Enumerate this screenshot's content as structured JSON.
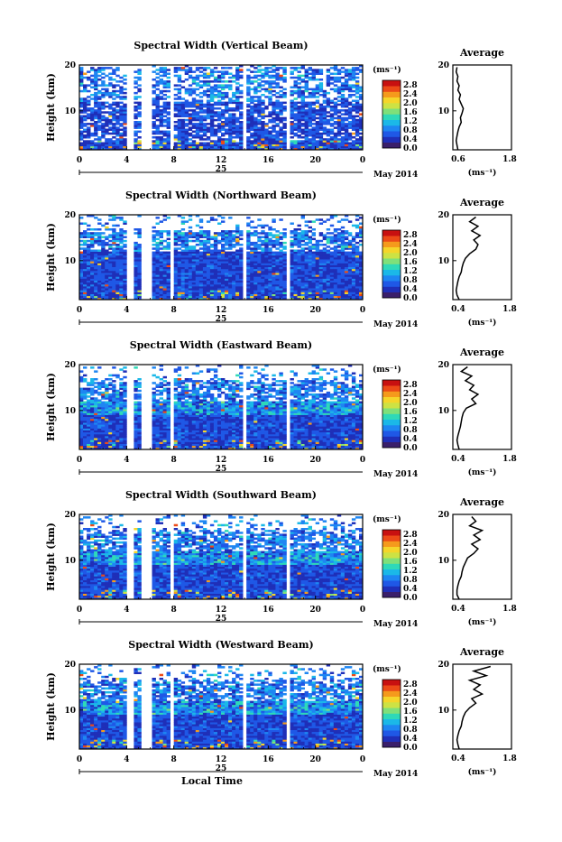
{
  "chart_data": {
    "type": "heatmap",
    "colorbar": {
      "unit": "(ms⁻¹)",
      "ticks": [
        "2.8",
        "2.4",
        "2.0",
        "1.6",
        "1.2",
        "0.8",
        "0.4",
        "0.0"
      ],
      "colors": [
        "#3a1f6b",
        "#1f2fb8",
        "#1f58e6",
        "#1e86f2",
        "#1bb8e8",
        "#2fd9b8",
        "#7fe07a",
        "#cde244",
        "#f5d52a",
        "#f59a1c",
        "#ec4a17",
        "#c81010"
      ]
    },
    "x_ticks": [
      "0",
      "4",
      "8",
      "12",
      "16",
      "20",
      "0"
    ],
    "x_range": [
      0,
      24
    ],
    "date_day": "25",
    "date_label": "May 2014",
    "xlabel": "Local Time",
    "ylabel": "Height (km)",
    "y_ticks": [
      "20",
      "10"
    ],
    "y_range": [
      1.5,
      20
    ],
    "gaps_hours": [
      [
        4.0,
        4.5
      ],
      [
        5.3,
        6.0
      ],
      [
        7.6,
        8.0
      ],
      [
        13.7,
        14.1
      ],
      [
        17.6,
        17.9
      ]
    ],
    "panels": [
      {
        "title": "Spectral Width (Vertical Beam)",
        "avg_title": "Average",
        "avg_xticks": [
          "0.6",
          "1.8"
        ],
        "avg_xrange": [
          0.4,
          1.8
        ],
        "avg_xlabel": "(ms⁻¹)",
        "avg_profile": [
          [
            0.52,
            1.5
          ],
          [
            0.5,
            2.5
          ],
          [
            0.48,
            3.5
          ],
          [
            0.5,
            4.5
          ],
          [
            0.52,
            5.5
          ],
          [
            0.55,
            6.5
          ],
          [
            0.6,
            7.5
          ],
          [
            0.58,
            8.5
          ],
          [
            0.62,
            9.5
          ],
          [
            0.65,
            10.5
          ],
          [
            0.6,
            11.5
          ],
          [
            0.55,
            12.5
          ],
          [
            0.58,
            13.5
          ],
          [
            0.52,
            14.5
          ],
          [
            0.55,
            15.5
          ],
          [
            0.5,
            16.5
          ],
          [
            0.52,
            17.5
          ],
          [
            0.48,
            18.5
          ],
          [
            0.5,
            19.5
          ]
        ]
      },
      {
        "title": "Spectral Width (Northward Beam)",
        "avg_title": "Average",
        "avg_xticks": [
          "0.4",
          "1.8"
        ],
        "avg_xrange": [
          0.4,
          1.8
        ],
        "avg_xlabel": "(ms⁻¹)",
        "avg_profile": [
          [
            0.55,
            1.5
          ],
          [
            0.5,
            2.5
          ],
          [
            0.48,
            3.5
          ],
          [
            0.5,
            4.5
          ],
          [
            0.52,
            5.5
          ],
          [
            0.55,
            6.5
          ],
          [
            0.6,
            7.5
          ],
          [
            0.62,
            8.5
          ],
          [
            0.65,
            9.5
          ],
          [
            0.7,
            10.5
          ],
          [
            0.8,
            11.5
          ],
          [
            0.95,
            12.5
          ],
          [
            1.0,
            13.5
          ],
          [
            0.9,
            14.5
          ],
          [
            1.05,
            15.5
          ],
          [
            0.85,
            16.5
          ],
          [
            1.0,
            17.5
          ],
          [
            0.8,
            18.5
          ],
          [
            0.95,
            19.5
          ]
        ]
      },
      {
        "title": "Spectral Width (Eastward Beam)",
        "avg_title": "Average",
        "avg_xticks": [
          "0.4",
          "1.8"
        ],
        "avg_xrange": [
          0.4,
          1.8
        ],
        "avg_xlabel": "(ms⁻¹)",
        "avg_profile": [
          [
            0.55,
            1.5
          ],
          [
            0.52,
            2.5
          ],
          [
            0.5,
            3.5
          ],
          [
            0.52,
            4.5
          ],
          [
            0.55,
            5.5
          ],
          [
            0.58,
            6.5
          ],
          [
            0.6,
            7.5
          ],
          [
            0.62,
            8.5
          ],
          [
            0.65,
            9.5
          ],
          [
            0.72,
            10.5
          ],
          [
            0.95,
            11.5
          ],
          [
            0.85,
            12.5
          ],
          [
            1.0,
            13.5
          ],
          [
            0.8,
            14.5
          ],
          [
            0.9,
            15.5
          ],
          [
            0.7,
            16.5
          ],
          [
            0.85,
            17.5
          ],
          [
            0.6,
            18.5
          ],
          [
            0.75,
            19.5
          ]
        ]
      },
      {
        "title": "Spectral Width (Southward Beam)",
        "avg_title": "Average",
        "avg_xticks": [
          "0.4",
          "1.8"
        ],
        "avg_xrange": [
          0.4,
          1.8
        ],
        "avg_xlabel": "(ms⁻¹)",
        "avg_profile": [
          [
            0.55,
            1.5
          ],
          [
            0.5,
            2.5
          ],
          [
            0.5,
            3.5
          ],
          [
            0.52,
            4.5
          ],
          [
            0.55,
            5.5
          ],
          [
            0.6,
            6.5
          ],
          [
            0.62,
            7.5
          ],
          [
            0.65,
            8.5
          ],
          [
            0.7,
            9.5
          ],
          [
            0.75,
            10.5
          ],
          [
            0.9,
            11.5
          ],
          [
            1.0,
            12.5
          ],
          [
            0.85,
            13.5
          ],
          [
            1.05,
            14.5
          ],
          [
            0.9,
            15.5
          ],
          [
            1.1,
            16.5
          ],
          [
            0.8,
            17.5
          ],
          [
            0.95,
            18.5
          ],
          [
            0.85,
            19.5
          ]
        ]
      },
      {
        "title": "Spectral Width (Westward Beam)",
        "avg_title": "Average",
        "avg_xticks": [
          "0.4",
          "1.8"
        ],
        "avg_xrange": [
          0.4,
          1.8
        ],
        "avg_xlabel": "(ms⁻¹)",
        "avg_profile": [
          [
            0.55,
            1.5
          ],
          [
            0.52,
            2.5
          ],
          [
            0.5,
            3.5
          ],
          [
            0.52,
            4.5
          ],
          [
            0.55,
            5.5
          ],
          [
            0.6,
            6.5
          ],
          [
            0.62,
            7.5
          ],
          [
            0.65,
            8.5
          ],
          [
            0.7,
            9.5
          ],
          [
            0.8,
            10.5
          ],
          [
            0.95,
            11.5
          ],
          [
            0.85,
            12.5
          ],
          [
            1.1,
            13.5
          ],
          [
            0.9,
            14.5
          ],
          [
            1.05,
            15.5
          ],
          [
            0.8,
            16.5
          ],
          [
            1.2,
            17.5
          ],
          [
            0.9,
            18.5
          ],
          [
            1.3,
            19.5
          ]
        ]
      }
    ]
  }
}
